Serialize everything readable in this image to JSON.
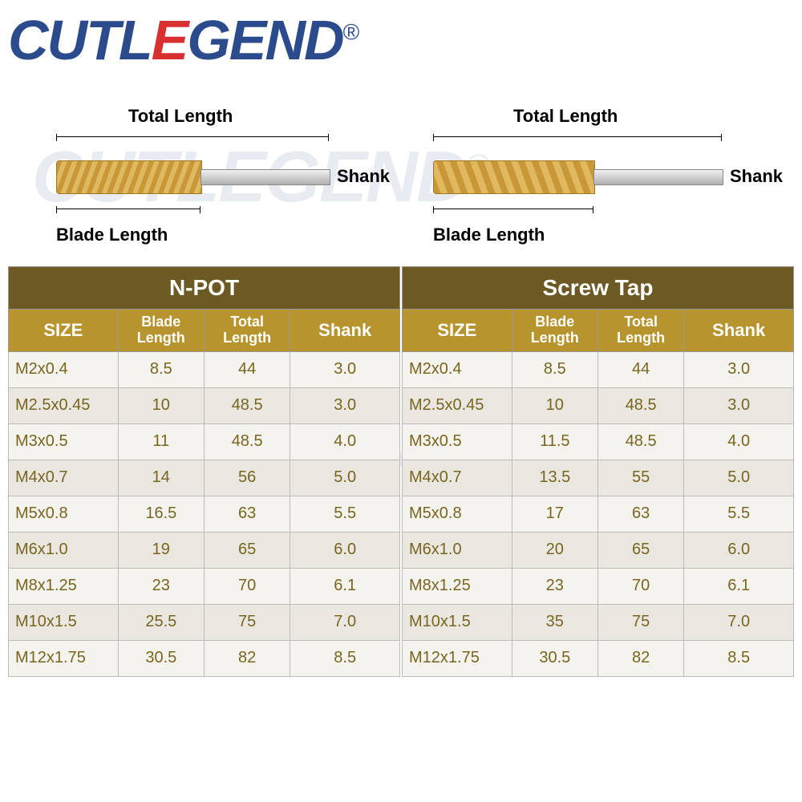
{
  "logo": {
    "prefix": "CUTL",
    "mid": "E",
    "suffix": "GEND",
    "reg": "®"
  },
  "diagram_labels": {
    "total_length": "Total Length",
    "blade_length": "Blade  Length",
    "shank": "Shank"
  },
  "tables": [
    {
      "title": "N-POT",
      "columns": [
        "SIZE",
        "Blade Length",
        "Total Length",
        "Shank"
      ],
      "rows": [
        [
          "M2x0.4",
          "8.5",
          "44",
          "3.0"
        ],
        [
          "M2.5x0.45",
          "10",
          "48.5",
          "3.0"
        ],
        [
          "M3x0.5",
          "11",
          "48.5",
          "4.0"
        ],
        [
          "M4x0.7",
          "14",
          "56",
          "5.0"
        ],
        [
          "M5x0.8",
          "16.5",
          "63",
          "5.5"
        ],
        [
          "M6x1.0",
          "19",
          "65",
          "6.0"
        ],
        [
          "M8x1.25",
          "23",
          "70",
          "6.1"
        ],
        [
          "M10x1.5",
          "25.5",
          "75",
          "7.0"
        ],
        [
          "M12x1.75",
          "30.5",
          "82",
          "8.5"
        ]
      ]
    },
    {
      "title": "Screw Tap",
      "columns": [
        "SIZE",
        "Blade Length",
        "Total Length",
        "Shank"
      ],
      "rows": [
        [
          "M2x0.4",
          "8.5",
          "44",
          "3.0"
        ],
        [
          "M2.5x0.45",
          "10",
          "48.5",
          "3.0"
        ],
        [
          "M3x0.5",
          "11.5",
          "48.5",
          "4.0"
        ],
        [
          "M4x0.7",
          "13.5",
          "55",
          "5.0"
        ],
        [
          "M5x0.8",
          "17",
          "63",
          "5.5"
        ],
        [
          "M6x1.0",
          "20",
          "65",
          "6.0"
        ],
        [
          "M8x1.25",
          "23",
          "70",
          "6.1"
        ],
        [
          "M10x1.5",
          "35",
          "75",
          "7.0"
        ],
        [
          "M12x1.75",
          "30.5",
          "82",
          "8.5"
        ]
      ]
    }
  ],
  "colors": {
    "title_bg": "#6d5924",
    "header_bg": "#b7942e",
    "cell_text": "#7a6520",
    "row_odd": "#f5f3ee",
    "row_even": "#e9e7e0",
    "logo_blue": "#2b4b8c",
    "logo_red": "#d83030"
  }
}
